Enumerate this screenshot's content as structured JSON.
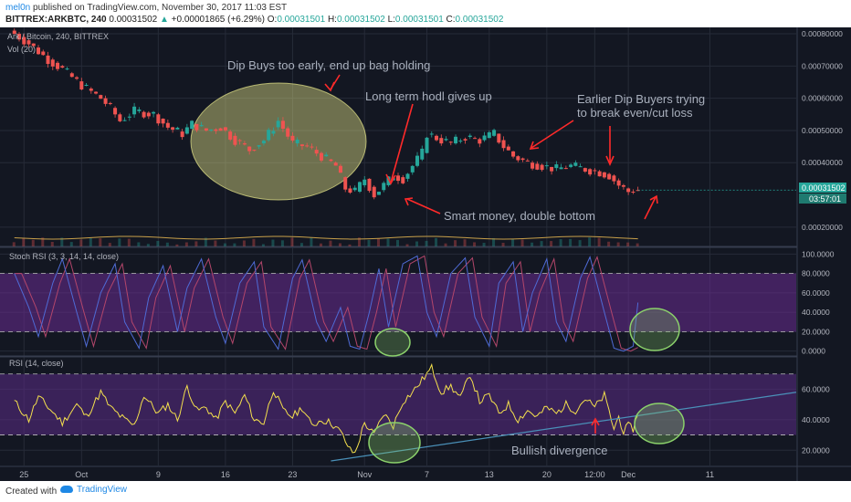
{
  "header": {
    "author": "mel0n",
    "published_text": "published on TradingView.com, November 30, 2017 11:03 EST",
    "symbol": "BITTREX:ARKBTC, 240",
    "last": "0.00031502",
    "change": "+0.00001865 (+6.29%)",
    "o_label": "O:",
    "o_value": "0.00031501",
    "h_label": "H:",
    "h_value": "0.00031502",
    "l_label": "L:",
    "l_value": "0.00031501",
    "c_label": "C:",
    "c_value": "0.00031502"
  },
  "colors": {
    "bg": "#131722",
    "grid": "#262b38",
    "up": "#26a69a",
    "down": "#ef5350",
    "stoch_band": "#6a2c91",
    "rsi_band": "#5b2b87",
    "rsi_line": "#f4e04d",
    "stoch_k": "#4f6bd6",
    "stoch_d": "#b3466b",
    "annotation_text": "#a9b0bd",
    "arrow": "#ff2a2a",
    "ellipse_fill": "#dede86",
    "green_circle": "#8bd16b",
    "trendline": "#4a90b8"
  },
  "footer": {
    "created_with": "Created with",
    "brand": "TradingView"
  },
  "chart_data": [
    {
      "type": "candlestick",
      "title": "Ark / Bitcoin, 240, BITTREX",
      "volume_label": "Vol (20)",
      "ylim": [
        0.00014,
        0.00082
      ],
      "y_ticks": [
        "0.00080000",
        "0.00070000",
        "0.00060000",
        "0.00050000",
        "0.00040000",
        "0.00020000"
      ],
      "y_tick_values": [
        0.0008,
        0.0007,
        0.0006,
        0.0005,
        0.0004,
        0.0002
      ],
      "last_price_label": "0.00031502",
      "countdown_label": "03:57:01",
      "last_price": 0.00031502,
      "price_path": [
        [
          0,
          0.00081
        ],
        [
          4,
          0.00077
        ],
        [
          8,
          0.00072
        ],
        [
          11,
          0.00069
        ],
        [
          15,
          0.00064
        ],
        [
          19,
          0.0006
        ],
        [
          21,
          0.00057
        ],
        [
          23,
          0.00053
        ],
        [
          26,
          0.00056
        ],
        [
          30,
          0.00055
        ],
        [
          33,
          0.00051
        ],
        [
          36,
          0.00049
        ],
        [
          38,
          0.00052
        ],
        [
          41,
          0.0005
        ],
        [
          44,
          0.00051
        ],
        [
          47,
          0.00047
        ],
        [
          50,
          0.00044
        ],
        [
          53,
          0.00047
        ],
        [
          56,
          0.00053
        ],
        [
          59,
          0.00046
        ],
        [
          62,
          0.00045
        ],
        [
          65,
          0.00042
        ],
        [
          68,
          0.00039
        ],
        [
          70,
          0.00032
        ],
        [
          72,
          0.00031
        ],
        [
          74,
          0.00035
        ],
        [
          76,
          0.0003
        ],
        [
          78,
          0.00033
        ],
        [
          80,
          0.00036
        ],
        [
          82,
          0.00035
        ],
        [
          84,
          0.00039
        ],
        [
          86,
          0.00043
        ],
        [
          87,
          0.00049
        ],
        [
          90,
          0.00047
        ],
        [
          92,
          0.00046
        ],
        [
          95,
          0.00048
        ],
        [
          98,
          0.00047
        ],
        [
          101,
          0.00049
        ],
        [
          103,
          0.00045
        ],
        [
          105,
          0.00042
        ],
        [
          108,
          0.0004
        ],
        [
          111,
          0.00039
        ],
        [
          114,
          0.00038
        ],
        [
          117,
          0.00039
        ],
        [
          120,
          0.00038
        ],
        [
          123,
          0.00037
        ],
        [
          125,
          0.00036
        ],
        [
          127,
          0.00033
        ],
        [
          129,
          0.00031
        ],
        [
          130,
          0.000315
        ]
      ],
      "volume_baseline": 0.000167
    },
    {
      "type": "line",
      "title": "Stoch RSI (3, 3, 14, 14, close)",
      "ylim": [
        -5,
        105
      ],
      "y_ticks": [
        "100.0000",
        "80.0000",
        "60.0000",
        "40.0000",
        "20.0000",
        "0.0000"
      ],
      "y_tick_values": [
        100,
        80,
        60,
        40,
        20,
        0
      ],
      "band": [
        20,
        80
      ],
      "k_path": [
        [
          0,
          80
        ],
        [
          3,
          45
        ],
        [
          5,
          15
        ],
        [
          8,
          70
        ],
        [
          10,
          95
        ],
        [
          13,
          40
        ],
        [
          15,
          5
        ],
        [
          18,
          60
        ],
        [
          21,
          90
        ],
        [
          23,
          30
        ],
        [
          26,
          3
        ],
        [
          28,
          55
        ],
        [
          31,
          88
        ],
        [
          34,
          20
        ],
        [
          36,
          65
        ],
        [
          39,
          95
        ],
        [
          42,
          35
        ],
        [
          44,
          8
        ],
        [
          47,
          70
        ],
        [
          50,
          92
        ],
        [
          52,
          25
        ],
        [
          55,
          2
        ],
        [
          58,
          75
        ],
        [
          60,
          94
        ],
        [
          63,
          30
        ],
        [
          65,
          10
        ],
        [
          68,
          45
        ],
        [
          70,
          5
        ],
        [
          72,
          2
        ],
        [
          74,
          40
        ],
        [
          76,
          85
        ],
        [
          78,
          25
        ],
        [
          81,
          90
        ],
        [
          84,
          98
        ],
        [
          86,
          40
        ],
        [
          88,
          15
        ],
        [
          91,
          80
        ],
        [
          94,
          96
        ],
        [
          96,
          35
        ],
        [
          99,
          5
        ],
        [
          101,
          70
        ],
        [
          104,
          92
        ],
        [
          106,
          20
        ],
        [
          108,
          60
        ],
        [
          111,
          95
        ],
        [
          113,
          30
        ],
        [
          115,
          10
        ],
        [
          118,
          75
        ],
        [
          120,
          97
        ],
        [
          123,
          40
        ],
        [
          125,
          3
        ],
        [
          127,
          0
        ],
        [
          129,
          5
        ],
        [
          130,
          50
        ]
      ]
    },
    {
      "type": "line",
      "title": "RSI (14, close)",
      "ylim": [
        10,
        80
      ],
      "y_ticks": [
        "60.0000",
        "40.0000",
        "20.0000"
      ],
      "y_tick_values": [
        60,
        40,
        20
      ],
      "band": [
        30,
        70
      ],
      "rsi_path": [
        [
          0,
          52
        ],
        [
          3,
          40
        ],
        [
          5,
          55
        ],
        [
          8,
          45
        ],
        [
          10,
          38
        ],
        [
          13,
          50
        ],
        [
          15,
          42
        ],
        [
          18,
          58
        ],
        [
          20,
          48
        ],
        [
          23,
          40
        ],
        [
          25,
          36
        ],
        [
          27,
          56
        ],
        [
          30,
          44
        ],
        [
          32,
          50
        ],
        [
          34,
          40
        ],
        [
          36,
          62
        ],
        [
          38,
          46
        ],
        [
          40,
          48
        ],
        [
          42,
          40
        ],
        [
          44,
          52
        ],
        [
          46,
          44
        ],
        [
          48,
          56
        ],
        [
          50,
          40
        ],
        [
          52,
          38
        ],
        [
          54,
          60
        ],
        [
          56,
          46
        ],
        [
          58,
          42
        ],
        [
          60,
          48
        ],
        [
          62,
          36
        ],
        [
          64,
          40
        ],
        [
          66,
          38
        ],
        [
          68,
          32
        ],
        [
          70,
          20
        ],
        [
          71,
          18
        ],
        [
          73,
          38
        ],
        [
          75,
          30
        ],
        [
          77,
          44
        ],
        [
          79,
          36
        ],
        [
          81,
          52
        ],
        [
          83,
          58
        ],
        [
          85,
          66
        ],
        [
          87,
          74
        ],
        [
          89,
          58
        ],
        [
          91,
          62
        ],
        [
          93,
          54
        ],
        [
          95,
          70
        ],
        [
          97,
          52
        ],
        [
          99,
          56
        ],
        [
          101,
          44
        ],
        [
          103,
          50
        ],
        [
          105,
          40
        ],
        [
          107,
          46
        ],
        [
          109,
          42
        ],
        [
          111,
          48
        ],
        [
          113,
          44
        ],
        [
          115,
          50
        ],
        [
          117,
          46
        ],
        [
          119,
          54
        ],
        [
          121,
          48
        ],
        [
          123,
          56
        ],
        [
          125,
          34
        ],
        [
          126,
          42
        ],
        [
          127,
          32
        ],
        [
          128,
          36
        ],
        [
          129,
          34
        ],
        [
          130,
          44
        ]
      ],
      "trendline": [
        [
          66,
          13
        ],
        [
          163,
          58
        ]
      ]
    }
  ],
  "x_axis": {
    "labels": [
      "25",
      "Oct",
      "9",
      "16",
      "23",
      "Nov",
      "7",
      "13",
      "20",
      "12:00",
      "Dec",
      "11"
    ],
    "positions": [
      2,
      14,
      30,
      44,
      58,
      73,
      86,
      99,
      111,
      121,
      128,
      145
    ],
    "range": [
      -3,
      163
    ]
  },
  "annotations": {
    "dip_buys": "Dip Buys too early, end up bag holding",
    "hodl": "Long term hodl gives up",
    "earlier_1": "Earlier Dip Buyers trying",
    "earlier_2": "to break even/cut loss",
    "smart": "Smart money, double bottom",
    "bullish": "Bullish divergence"
  }
}
